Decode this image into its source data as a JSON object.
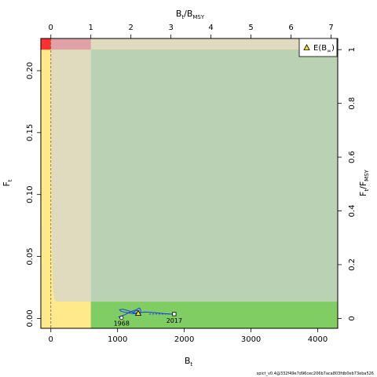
{
  "chart_data": {
    "type": "line",
    "title": "",
    "xlabel": "B",
    "xlabel_sub": "t",
    "ylabel": "F",
    "ylabel_sub": "t",
    "top_xlabel": "B",
    "top_xlabel_sub1": "t",
    "top_xlabel_mid": "/B",
    "top_xlabel_sub2": "MSY",
    "right_ylabel": "F",
    "right_ylabel_sub1": "t",
    "right_ylabel_mid": "/F",
    "right_ylabel_sub2": "MSY",
    "xlim": [
      -150,
      4300
    ],
    "ylim": [
      -0.008,
      0.226
    ],
    "x_ticks": [
      0,
      1000,
      2000,
      3000,
      4000
    ],
    "x_tick_labels": [
      "0",
      "1000",
      "2000",
      "3000",
      "4000"
    ],
    "y_ticks": [
      0.0,
      0.05,
      0.1,
      0.15,
      0.2
    ],
    "y_tick_labels": [
      "0.00",
      "0.05",
      "0.10",
      "0.15",
      "0.20"
    ],
    "top_ticks": [
      0,
      1,
      2,
      3,
      4,
      5,
      6,
      7
    ],
    "top_tick_labels": [
      "0",
      "1",
      "2",
      "3",
      "4",
      "5",
      "6",
      "7"
    ],
    "right_ticks": [
      0,
      0.2,
      0.4,
      0.6,
      0.8,
      1
    ],
    "right_tick_labels": [
      "0",
      "0.2",
      "0.4",
      "0.6",
      "0.8",
      "1"
    ],
    "bmsy": 600,
    "fmsy": 0.217,
    "region_colors": {
      "red": "#ff3030",
      "pink": "#e0a2a6",
      "tan": "#e0dabe",
      "yellow": "#ffe98a",
      "light_green": "#bbd1b3",
      "green": "#80cd64",
      "series": "#1a3ee0"
    },
    "series": [
      {
        "x": [
          1060,
          1020,
          1110,
          1200,
          1280,
          1330,
          1350,
          1340,
          1300,
          1250,
          1200,
          1140,
          1080,
          1030,
          1050,
          1120,
          1190,
          1240,
          1280,
          1310,
          1320,
          1300,
          1260,
          1230,
          1250,
          1300,
          1360,
          1420,
          1480,
          1540,
          1600,
          1660,
          1720,
          1780,
          1850
        ],
        "y": [
          0.0005,
          0.0012,
          0.003,
          0.0055,
          0.007,
          0.0085,
          0.0065,
          0.004,
          0.003,
          0.0045,
          0.0055,
          0.0065,
          0.0075,
          0.007,
          0.0058,
          0.0048,
          0.0042,
          0.0038,
          0.004,
          0.005,
          0.006,
          0.0065,
          0.0058,
          0.0048,
          0.0043,
          0.0045,
          0.0048,
          0.0052,
          0.005,
          0.0047,
          0.0044,
          0.0041,
          0.0038,
          0.0036,
          0.0035
        ]
      }
    ],
    "start_point": {
      "x": 1060,
      "y": 0.0005,
      "label": "1968"
    },
    "end_point": {
      "x": 1850,
      "y": 0.0035,
      "label": "2017"
    },
    "expected_point": {
      "x": 1310,
      "y": 0.004
    },
    "legend": {
      "position": "top-right",
      "label": "E(B",
      "label_sub": "∞",
      "label_end": ")"
    },
    "footer": "spict_v0.4@332f49e7d96cec206b7aca803fdb0eb73eba526"
  }
}
